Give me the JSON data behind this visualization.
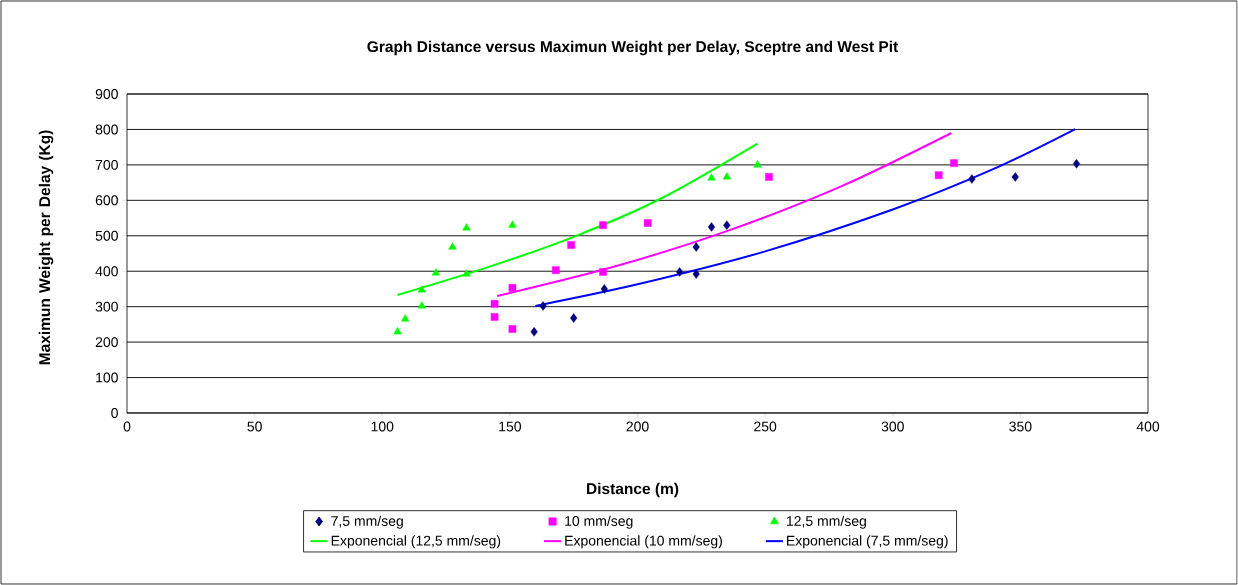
{
  "chart_data": {
    "type": "scatter",
    "title": "Graph Distance versus Maximun Weight per Delay, Sceptre and West Pit",
    "xlabel": "Distance (m)",
    "ylabel": "Maximun Weight per Delay (Kg)",
    "xlim": [
      0,
      400
    ],
    "ylim": [
      0,
      900
    ],
    "xticks": [
      0,
      50,
      100,
      150,
      200,
      250,
      300,
      350,
      400
    ],
    "yticks": [
      0,
      100,
      200,
      300,
      400,
      500,
      600,
      700,
      800,
      900
    ],
    "grid": "y",
    "legend": "bottom",
    "series": [
      {
        "name": "7,5 mm/seg",
        "marker": "diamond",
        "color": "#000080",
        "x": [
          159.5,
          163,
          175,
          187,
          216.5,
          223,
          223,
          229,
          235,
          331,
          348,
          372
        ],
        "values": [
          229,
          302,
          268,
          350,
          398,
          392,
          468,
          525,
          530,
          660,
          666,
          703
        ]
      },
      {
        "name": "10 mm/seg",
        "marker": "square",
        "color": "#ff00ff",
        "x": [
          144,
          144,
          151,
          151,
          168,
          174,
          186.5,
          186.5,
          204,
          251.5,
          318,
          324
        ],
        "values": [
          308,
          271,
          237,
          353,
          403,
          474,
          398,
          530,
          536,
          666,
          671,
          705
        ]
      },
      {
        "name": "12,5 mm/seg",
        "marker": "triangle",
        "color": "#00ff00",
        "x": [
          106,
          109,
          115.5,
          115.5,
          121,
          127.5,
          133,
          133,
          151,
          229,
          235,
          247
        ],
        "values": [
          229,
          265,
          302,
          347,
          395,
          468,
          522,
          392,
          530,
          663,
          666,
          700
        ]
      },
      {
        "name": "Exponencial (12,5 mm/seg)",
        "type": "line",
        "color": "#00ff00",
        "x": [
          106,
          140,
          175,
          210,
          247
        ],
        "values": [
          333,
          408,
          497,
          608,
          760
        ]
      },
      {
        "name": "Exponencial (10 mm/seg)",
        "type": "line",
        "color": "#ff00ff",
        "x": [
          145,
          190,
          235,
          280,
          323
        ],
        "values": [
          330,
          411,
          513,
          640,
          790
        ]
      },
      {
        "name": "Exponencial (7,5 mm/seg)",
        "type": "line",
        "color": "#0000ff",
        "x": [
          160,
          200,
          250,
          300,
          340,
          371.5
        ],
        "values": [
          302,
          363,
          456,
          574,
          690,
          801
        ]
      }
    ]
  }
}
